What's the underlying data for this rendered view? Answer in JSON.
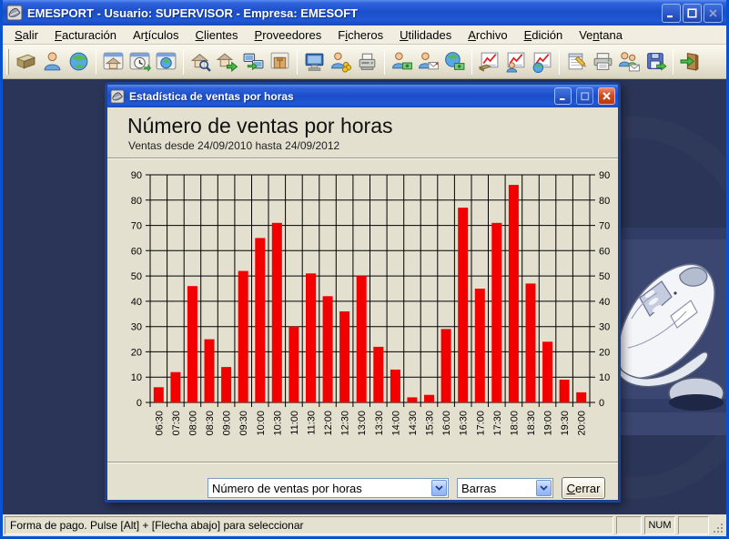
{
  "window": {
    "title": "EMESPORT  -  Usuario: SUPERVISOR  -  Empresa: EMESOFT"
  },
  "menu": {
    "items": [
      {
        "label": "Salir",
        "underline_index": 0
      },
      {
        "label": "Facturación",
        "underline_index": 0
      },
      {
        "label": "Artículos",
        "underline_index": 2
      },
      {
        "label": "Clientes",
        "underline_index": 0
      },
      {
        "label": "Proveedores",
        "underline_index": 0
      },
      {
        "label": "Ficheros",
        "underline_index": 1
      },
      {
        "label": "Utilidades",
        "underline_index": 0
      },
      {
        "label": "Archivo",
        "underline_index": 0
      },
      {
        "label": "Edición",
        "underline_index": 0
      },
      {
        "label": "Ventana",
        "underline_index": 2
      }
    ]
  },
  "toolbar": {
    "groups": [
      [
        "books",
        "customer",
        "globe"
      ],
      [
        "home-window",
        "clock-window",
        "globe-window"
      ],
      [
        "home-search",
        "home-export",
        "screens-transfer",
        "package"
      ],
      [
        "workstation",
        "person-coins",
        "fax"
      ],
      [
        "person-money",
        "person-mail",
        "globe-money"
      ],
      [
        "chart-sales",
        "chart-customers",
        "chart-web"
      ],
      [
        "notepad",
        "printer",
        "contacts-mail",
        "save"
      ],
      [
        "exit"
      ]
    ]
  },
  "dialog": {
    "title": "Estadística de ventas por horas",
    "metric_combo": {
      "value": "Número de ventas por horas"
    },
    "type_combo": {
      "value": "Barras"
    },
    "close_button": {
      "label": "Cerrar",
      "underline_index": 0
    }
  },
  "chart_data": {
    "type": "bar",
    "title": "Número de ventas por horas",
    "subtitle": "Ventas desde 24/09/2010 hasta 24/09/2012",
    "categories": [
      "06:30",
      "07:30",
      "08:00",
      "08:30",
      "09:00",
      "09:30",
      "10:00",
      "10:30",
      "11:00",
      "11:30",
      "12:00",
      "12:30",
      "13:00",
      "13:30",
      "14:00",
      "14:30",
      "15:30",
      "16:00",
      "16:30",
      "17:00",
      "17:30",
      "18:00",
      "18:30",
      "19:00",
      "19:30",
      "20:00"
    ],
    "values": [
      6,
      12,
      46,
      25,
      14,
      52,
      65,
      71,
      30,
      51,
      42,
      36,
      50,
      22,
      13,
      2,
      3,
      29,
      77,
      45,
      71,
      86,
      47,
      24,
      9,
      4
    ],
    "ylim": [
      0,
      90
    ],
    "ytick_step": 10,
    "grid": true,
    "y_axis_both_sides": true,
    "bar_color": "#f20000",
    "grid_color": "#000000",
    "background_color": "#e4e0d0"
  },
  "statusbar": {
    "message": "Forma de pago. Pulse [Alt] + [Flecha abajo] para seleccionar",
    "num_indicator": "NUM"
  }
}
